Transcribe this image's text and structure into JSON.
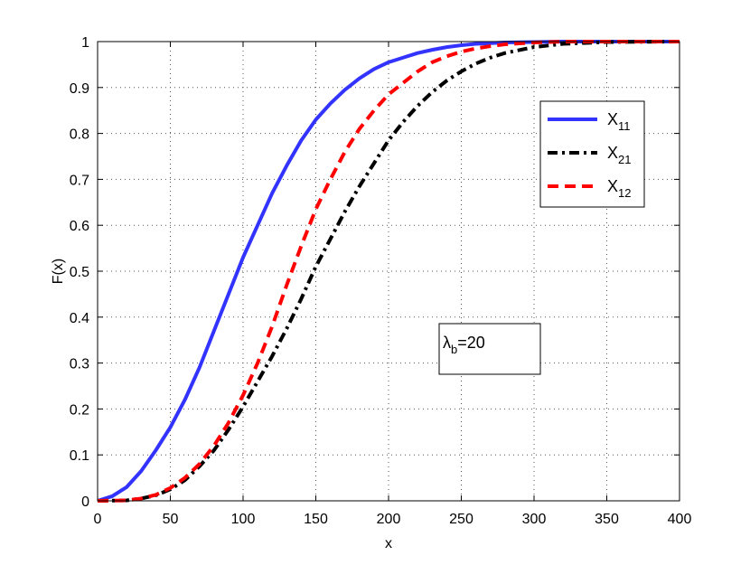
{
  "chart_data": {
    "type": "line",
    "xlabel": "x",
    "ylabel": "F(x)",
    "xlim": [
      0,
      400
    ],
    "ylim": [
      0,
      1
    ],
    "xticks": [
      "0",
      "50",
      "100",
      "150",
      "200",
      "250",
      "300",
      "350",
      "400"
    ],
    "yticks": [
      "0",
      "0.1",
      "0.2",
      "0.3",
      "0.4",
      "0.5",
      "0.6",
      "0.7",
      "0.8",
      "0.9",
      "1"
    ],
    "grid": true,
    "legend_placement": "upper-right",
    "annotation": {
      "symbol": "λ",
      "sub": "b",
      "text": "=20"
    },
    "series": [
      {
        "name": "X",
        "sub": "11",
        "color": "#3333ff",
        "style": "solid",
        "x": [
          0,
          10,
          20,
          30,
          40,
          50,
          60,
          70,
          80,
          90,
          100,
          110,
          120,
          130,
          140,
          150,
          160,
          170,
          180,
          190,
          200,
          210,
          220,
          230,
          240,
          250,
          260,
          280,
          300,
          320,
          350,
          400
        ],
        "y": [
          0,
          0.01,
          0.03,
          0.065,
          0.11,
          0.16,
          0.22,
          0.29,
          0.37,
          0.45,
          0.53,
          0.6,
          0.67,
          0.73,
          0.785,
          0.83,
          0.865,
          0.895,
          0.92,
          0.94,
          0.955,
          0.965,
          0.975,
          0.982,
          0.988,
          0.992,
          0.995,
          0.998,
          0.999,
          1,
          1,
          1
        ]
      },
      {
        "name": "X",
        "sub": "21",
        "color": "#000000",
        "style": "dashdot",
        "x": [
          0,
          20,
          30,
          40,
          50,
          60,
          70,
          80,
          90,
          100,
          110,
          120,
          130,
          140,
          150,
          160,
          170,
          180,
          190,
          200,
          210,
          220,
          230,
          240,
          250,
          260,
          270,
          280,
          300,
          320,
          350,
          400
        ],
        "y": [
          0,
          0.001,
          0.005,
          0.012,
          0.025,
          0.045,
          0.075,
          0.11,
          0.155,
          0.205,
          0.26,
          0.315,
          0.375,
          0.44,
          0.51,
          0.57,
          0.63,
          0.685,
          0.735,
          0.785,
          0.825,
          0.86,
          0.89,
          0.915,
          0.935,
          0.952,
          0.965,
          0.975,
          0.988,
          0.995,
          0.999,
          1
        ]
      },
      {
        "name": "X",
        "sub": "12",
        "color": "#ff0000",
        "style": "dashed",
        "x": [
          0,
          20,
          30,
          40,
          50,
          60,
          70,
          80,
          90,
          100,
          110,
          120,
          130,
          140,
          150,
          160,
          170,
          180,
          190,
          200,
          210,
          220,
          230,
          240,
          250,
          260,
          270,
          280,
          300,
          320,
          350,
          400
        ],
        "y": [
          0,
          0.001,
          0.005,
          0.013,
          0.028,
          0.05,
          0.08,
          0.12,
          0.17,
          0.23,
          0.3,
          0.38,
          0.47,
          0.555,
          0.635,
          0.7,
          0.76,
          0.81,
          0.85,
          0.885,
          0.91,
          0.935,
          0.955,
          0.968,
          0.978,
          0.985,
          0.99,
          0.994,
          0.998,
          1,
          1,
          1
        ]
      }
    ]
  }
}
